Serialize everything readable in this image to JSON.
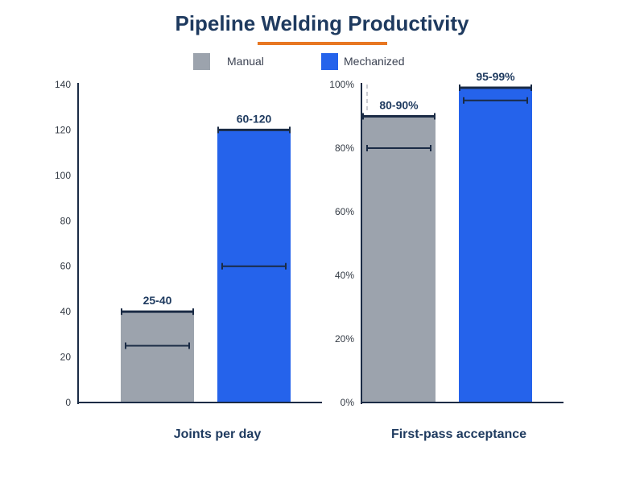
{
  "colors": {
    "title": "#1e3a5f",
    "accent": "#e87722",
    "manual": "#9ca3ad",
    "mechanized": "#2563eb",
    "errorbar": "#1a2b45",
    "axis": "#1a2b45"
  },
  "chart_data": {
    "type": "bar",
    "title": "Pipeline Welding Productivity",
    "legend": {
      "placement": "top-center",
      "entries": [
        {
          "name": "Manual",
          "color": "#9ca3ad"
        },
        {
          "name": "Mechanized",
          "color": "#2563eb"
        }
      ]
    },
    "panels": [
      {
        "group_label": "Joints per day",
        "ylim": [
          0,
          140
        ],
        "yticks": [
          0,
          20,
          40,
          60,
          80,
          100,
          120,
          140
        ],
        "ytick_labels": [
          "0",
          "20",
          "40",
          "60",
          "80",
          "100",
          "120",
          "140"
        ],
        "bars": [
          {
            "series": "Manual",
            "value": 40,
            "range": [
              25,
              40
            ],
            "label": "25-40"
          },
          {
            "series": "Mechanized",
            "value": 120,
            "range": [
              60,
              120
            ],
            "label": "60-120"
          }
        ]
      },
      {
        "group_label": "First-pass acceptance",
        "ylim": [
          0,
          100
        ],
        "yticks": [
          0,
          20,
          40,
          60,
          80,
          100
        ],
        "ytick_labels": [
          "0%",
          "20%",
          "40%",
          "60%",
          "80%",
          "100%"
        ],
        "bars": [
          {
            "series": "Manual",
            "value": 90,
            "range": [
              80,
              90
            ],
            "label": "80-90%"
          },
          {
            "series": "Mechanized",
            "value": 99,
            "range": [
              95,
              99
            ],
            "label": "95-99%"
          }
        ]
      }
    ]
  }
}
